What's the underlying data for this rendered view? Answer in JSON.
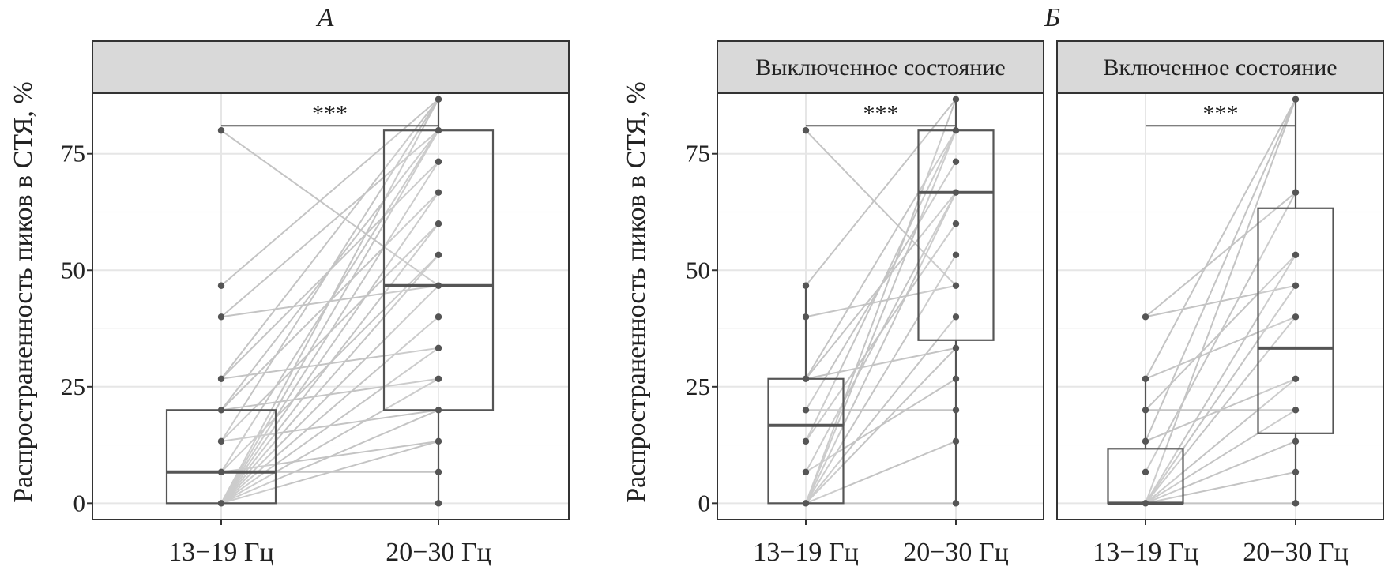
{
  "chart_data": [
    {
      "type": "box",
      "title": "А",
      "ylabel": "Распространенность пиков в СТЯ, %",
      "strip_label": "",
      "categories": [
        "13−19 Гц",
        "20−30 Гц"
      ],
      "ylim": [
        -3.5,
        88
      ],
      "yticks": [
        0,
        25,
        50,
        75
      ],
      "grid": true,
      "significance": "***",
      "boxes": [
        {
          "category": "13−19 Гц",
          "q1": 0,
          "median": 6.7,
          "q3": 20,
          "whisker_low": 0,
          "whisker_high": 20
        },
        {
          "category": "20−30 Гц",
          "q1": 20,
          "median": 46.7,
          "q3": 80,
          "whisker_low": 0,
          "whisker_high": 86.7
        }
      ],
      "points": {
        "13−19 Гц": [
          80,
          46.7,
          40,
          26.7,
          20,
          13.3,
          6.7,
          0
        ],
        "20−30 Гц": [
          86.7,
          80,
          73.3,
          66.7,
          60,
          53.3,
          46.7,
          40,
          33.3,
          26.7,
          20,
          13.3,
          6.7,
          0
        ]
      },
      "pairs": [
        [
          80,
          46.7
        ],
        [
          46.7,
          86.7
        ],
        [
          40,
          80
        ],
        [
          40,
          46.7
        ],
        [
          26.7,
          86.7
        ],
        [
          26.7,
          73.3
        ],
        [
          26.7,
          33.3
        ],
        [
          20,
          80
        ],
        [
          20,
          66.7
        ],
        [
          20,
          26.7
        ],
        [
          13.3,
          86.7
        ],
        [
          13.3,
          60
        ],
        [
          13.3,
          20
        ],
        [
          6.7,
          80
        ],
        [
          6.7,
          53.3
        ],
        [
          6.7,
          13.3
        ],
        [
          6.7,
          6.7
        ],
        [
          0,
          86.7
        ],
        [
          0,
          80
        ],
        [
          0,
          73.3
        ],
        [
          0,
          66.7
        ],
        [
          0,
          60
        ],
        [
          0,
          53.3
        ],
        [
          0,
          46.7
        ],
        [
          0,
          40
        ],
        [
          0,
          33.3
        ],
        [
          0,
          26.7
        ],
        [
          0,
          20
        ],
        [
          0,
          13.3
        ],
        [
          0,
          0
        ]
      ]
    },
    {
      "type": "box",
      "title": "Б",
      "ylabel": "Распространенность пиков в СТЯ, %",
      "strip_label": "Выключенное состояние",
      "categories": [
        "13−19 Гц",
        "20−30 Гц"
      ],
      "ylim": [
        -3.5,
        88
      ],
      "yticks": [
        0,
        25,
        50,
        75
      ],
      "grid": true,
      "significance": "***",
      "boxes": [
        {
          "category": "13−19 Гц",
          "q1": 0,
          "median": 16.7,
          "q3": 26.7,
          "whisker_low": 0,
          "whisker_high": 46.7
        },
        {
          "category": "20−30 Гц",
          "q1": 35,
          "median": 66.7,
          "q3": 80,
          "whisker_low": 0,
          "whisker_high": 86.7
        }
      ],
      "points": {
        "13−19 Гц": [
          80,
          46.7,
          40,
          26.7,
          20,
          13.3,
          6.7,
          0
        ],
        "20−30 Гц": [
          86.7,
          80,
          73.3,
          66.7,
          60,
          53.3,
          46.7,
          40,
          33.3,
          26.7,
          20,
          13.3,
          0
        ]
      },
      "pairs": [
        [
          80,
          46.7
        ],
        [
          46.7,
          86.7
        ],
        [
          40,
          46.7
        ],
        [
          26.7,
          80
        ],
        [
          26.7,
          66.7
        ],
        [
          26.7,
          33.3
        ],
        [
          20,
          73.3
        ],
        [
          20,
          20
        ],
        [
          13.3,
          80
        ],
        [
          13.3,
          60
        ],
        [
          6.7,
          66.7
        ],
        [
          6.7,
          26.7
        ],
        [
          0,
          86.7
        ],
        [
          0,
          80
        ],
        [
          0,
          66.7
        ],
        [
          0,
          53.3
        ],
        [
          0,
          40
        ],
        [
          0,
          33.3
        ],
        [
          0,
          13.3
        ],
        [
          0,
          0
        ]
      ]
    },
    {
      "type": "box",
      "title": "",
      "ylabel": "",
      "strip_label": "Включенное состояние",
      "categories": [
        "13−19 Гц",
        "20−30 Гц"
      ],
      "ylim": [
        -3.5,
        88
      ],
      "yticks": [
        0,
        25,
        50,
        75
      ],
      "grid": true,
      "significance": "***",
      "boxes": [
        {
          "category": "13−19 Гц",
          "q1": 0,
          "median": 0,
          "q3": 11.7,
          "whisker_low": 0,
          "whisker_high": 26.7
        },
        {
          "category": "20−30 Гц",
          "q1": 15,
          "median": 33.3,
          "q3": 63.3,
          "whisker_low": 0,
          "whisker_high": 86.7
        }
      ],
      "points": {
        "13−19 Гц": [
          40,
          26.7,
          20,
          13.3,
          6.7,
          0
        ],
        "20−30 Гц": [
          86.7,
          66.7,
          53.3,
          46.7,
          40,
          26.7,
          20,
          13.3,
          6.7,
          0
        ]
      },
      "pairs": [
        [
          40,
          66.7
        ],
        [
          40,
          46.7
        ],
        [
          26.7,
          86.7
        ],
        [
          26.7,
          40
        ],
        [
          20,
          53.3
        ],
        [
          20,
          20
        ],
        [
          13.3,
          26.7
        ],
        [
          13.3,
          86.7
        ],
        [
          6.7,
          66.7
        ],
        [
          0,
          86.7
        ],
        [
          0,
          53.3
        ],
        [
          0,
          46.7
        ],
        [
          0,
          40
        ],
        [
          0,
          26.7
        ],
        [
          0,
          20
        ],
        [
          0,
          13.3
        ],
        [
          0,
          6.7
        ],
        [
          0,
          0
        ]
      ]
    }
  ]
}
